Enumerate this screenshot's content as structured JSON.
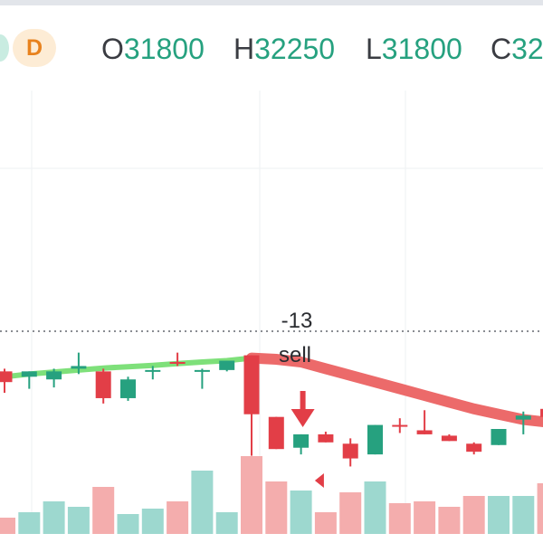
{
  "legend": {
    "interval": "D",
    "open_label": "O",
    "open_value": "31800",
    "high_label": "H",
    "high_value": "32250",
    "low_label": "L",
    "low_value": "31800",
    "close_label": "C",
    "close_value": "32"
  },
  "colors": {
    "up": "#26a17f",
    "down": "#e23e47",
    "up_volume": "#9dd8cf",
    "down_volume": "#f4adad",
    "ma_up": "#7ee07a",
    "ma_down": "#ec6a6a",
    "grid": "#edf0f3",
    "price_line": "#8a8d93"
  },
  "signal": {
    "value": "-13",
    "label": "sell"
  },
  "chart_data": {
    "type": "candlestick",
    "candles": [
      {
        "o": 31780,
        "h": 31800,
        "l": 31620,
        "c": 31700
      },
      {
        "o": 31740,
        "h": 31780,
        "l": 31650,
        "c": 31780
      },
      {
        "o": 31720,
        "h": 31800,
        "l": 31660,
        "c": 31780
      },
      {
        "o": 31800,
        "h": 31920,
        "l": 31760,
        "c": 31820
      },
      {
        "o": 31780,
        "h": 31800,
        "l": 31540,
        "c": 31580
      },
      {
        "o": 31580,
        "h": 31740,
        "l": 31560,
        "c": 31720
      },
      {
        "o": 31790,
        "h": 31820,
        "l": 31720,
        "c": 31790
      },
      {
        "o": 31850,
        "h": 31920,
        "l": 31820,
        "c": 31840
      },
      {
        "o": 31790,
        "h": 31800,
        "l": 31650,
        "c": 31790
      },
      {
        "o": 31790,
        "h": 31860,
        "l": 31780,
        "c": 31860
      },
      {
        "o": 31900,
        "h": 31900,
        "l": 31150,
        "c": 31460
      },
      {
        "o": 31440,
        "h": 31440,
        "l": 31200,
        "c": 31200
      },
      {
        "o": 31210,
        "h": 31310,
        "l": 31160,
        "c": 31310
      },
      {
        "o": 31310,
        "h": 31330,
        "l": 31250,
        "c": 31250
      },
      {
        "o": 31240,
        "h": 31280,
        "l": 31070,
        "c": 31130
      },
      {
        "o": 31160,
        "h": 31380,
        "l": 31160,
        "c": 31380
      },
      {
        "o": 31380,
        "h": 31430,
        "l": 31320,
        "c": 31370
      },
      {
        "o": 31340,
        "h": 31490,
        "l": 31310,
        "c": 31310
      },
      {
        "o": 31300,
        "h": 31310,
        "l": 31260,
        "c": 31260
      },
      {
        "o": 31240,
        "h": 31250,
        "l": 31160,
        "c": 31180
      },
      {
        "o": 31230,
        "h": 31350,
        "l": 31230,
        "c": 31350
      },
      {
        "o": 31420,
        "h": 31480,
        "l": 31310,
        "c": 31450
      },
      {
        "o": 31500,
        "h": 31620,
        "l": 31420,
        "c": 31440
      }
    ],
    "volume": [
      18,
      24,
      36,
      30,
      52,
      22,
      28,
      36,
      70,
      24,
      86,
      58,
      48,
      24,
      46,
      58,
      34,
      36,
      30,
      42,
      42,
      42,
      56
    ],
    "moving_average": [
      31740,
      31760,
      31775,
      31790,
      31805,
      31815,
      31825,
      31838,
      31850,
      31860,
      31880,
      31870,
      31850,
      31800,
      31750,
      31700,
      31650,
      31600,
      31550,
      31500,
      31460,
      31420,
      31400
    ],
    "price_line": 32080,
    "signal_index": 12
  }
}
